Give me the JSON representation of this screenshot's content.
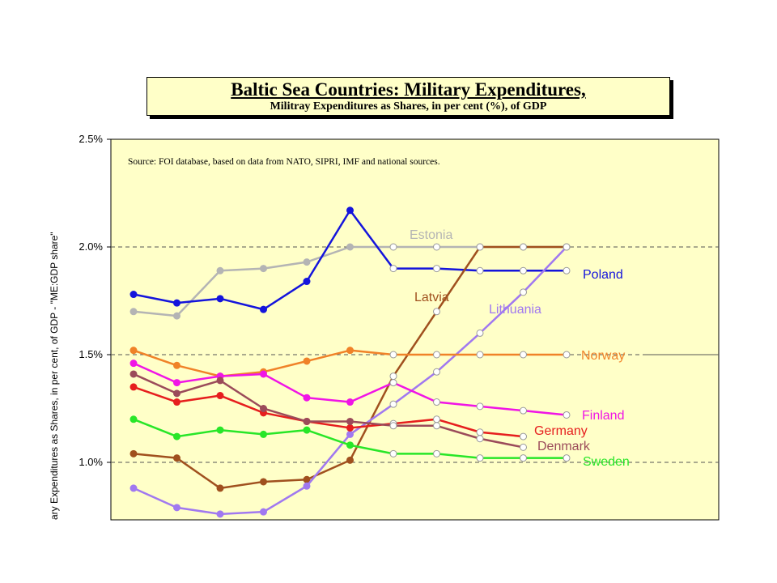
{
  "chart_data": {
    "type": "line",
    "title": "Baltic Sea Countries: Military Expenditures,",
    "subtitle": "Militray Expenditures as Shares, in per cent (%), of GDP",
    "source": "Source: FOI database, based on data from NATO, SIPRI, IMF and national sources.",
    "ylabel": "ary Expenditures  as Shares, in per cent, of GDP - \"ME:GDP share\"",
    "xlabel": "",
    "ylim": [
      0.75,
      2.5
    ],
    "yticks": [
      {
        "value": 1.0,
        "label": "1.0%"
      },
      {
        "value": 1.5,
        "label": "1.5%"
      },
      {
        "value": 2.0,
        "label": "2.0%"
      },
      {
        "value": 2.5,
        "label": "2.5%"
      }
    ],
    "x": [
      0,
      1,
      2,
      3,
      4,
      5,
      6,
      7,
      8,
      9,
      10
    ],
    "grid": true,
    "series": [
      {
        "name": "Estonia",
        "color": "#b4b4b4",
        "values": [
          1.7,
          1.68,
          1.89,
          1.9,
          1.93,
          2.0,
          2.0,
          2.0,
          2.0,
          2.0,
          2.0
        ]
      },
      {
        "name": "Poland",
        "color": "#1414dc",
        "values": [
          1.78,
          1.74,
          1.76,
          1.71,
          1.84,
          2.17,
          1.9,
          1.9,
          1.89,
          1.89,
          1.89
        ]
      },
      {
        "name": "Latvia",
        "color": "#a0501e",
        "values": [
          1.04,
          1.02,
          0.88,
          0.91,
          0.92,
          1.01,
          1.4,
          1.7,
          2.0,
          2.0,
          2.0
        ]
      },
      {
        "name": "Lithuania",
        "color": "#a078f0",
        "values": [
          0.88,
          0.79,
          0.76,
          0.77,
          0.89,
          1.13,
          1.27,
          1.42,
          1.6,
          1.79,
          2.0
        ]
      },
      {
        "name": "Norway",
        "color": "#f08228",
        "values": [
          1.52,
          1.45,
          1.4,
          1.42,
          1.47,
          1.52,
          1.5,
          1.5,
          1.5,
          1.5,
          1.5
        ]
      },
      {
        "name": "Finland",
        "color": "#f014e6",
        "values": [
          1.46,
          1.37,
          1.4,
          1.41,
          1.3,
          1.28,
          1.37,
          1.28,
          1.26,
          1.24,
          1.22
        ]
      },
      {
        "name": "Germany",
        "color": "#e61e1e",
        "values": [
          1.35,
          1.28,
          1.31,
          1.23,
          1.19,
          1.16,
          1.18,
          1.2,
          1.14,
          1.12,
          null
        ]
      },
      {
        "name": "Denmark",
        "color": "#9b4b5a",
        "values": [
          1.41,
          1.32,
          1.38,
          1.25,
          1.19,
          1.19,
          1.17,
          1.17,
          1.11,
          1.07,
          null
        ]
      },
      {
        "name": "Sweden",
        "color": "#28e628",
        "values": [
          1.2,
          1.12,
          1.15,
          1.13,
          1.15,
          1.08,
          1.04,
          1.04,
          1.02,
          1.02,
          1.02
        ]
      }
    ]
  }
}
